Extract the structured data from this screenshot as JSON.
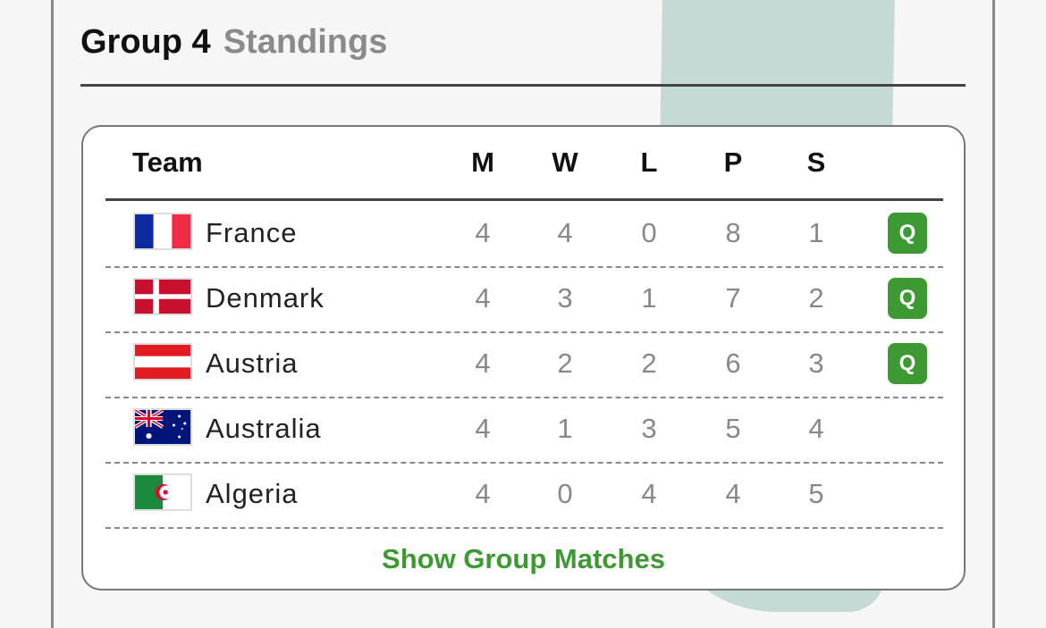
{
  "header": {
    "group": "Group 4",
    "subtitle": "Standings"
  },
  "table": {
    "columns": [
      "Team",
      "M",
      "W",
      "L",
      "P",
      "S"
    ],
    "rows": [
      {
        "team": "France",
        "flag": "france-flag",
        "M": "4",
        "W": "4",
        "L": "0",
        "P": "8",
        "S": "1",
        "badge": "Q"
      },
      {
        "team": "Denmark",
        "flag": "denmark-flag",
        "M": "4",
        "W": "3",
        "L": "1",
        "P": "7",
        "S": "2",
        "badge": "Q"
      },
      {
        "team": "Austria",
        "flag": "austria-flag",
        "M": "4",
        "W": "2",
        "L": "2",
        "P": "6",
        "S": "3",
        "badge": "Q"
      },
      {
        "team": "Australia",
        "flag": "australia-flag",
        "M": "4",
        "W": "1",
        "L": "3",
        "P": "5",
        "S": "4"
      },
      {
        "team": "Algeria",
        "flag": "algeria-flag",
        "M": "4",
        "W": "0",
        "L": "4",
        "P": "4",
        "S": "5"
      }
    ]
  },
  "footer": {
    "link": "Show Group Matches"
  },
  "colors": {
    "accent": "#3d9a33",
    "qualified_badge": "#3d9a33",
    "background_shape": "#c5d9d6"
  }
}
